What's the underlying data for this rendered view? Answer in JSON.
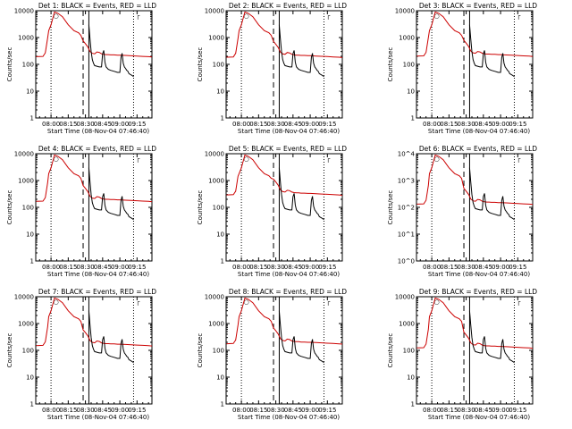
{
  "colors": {
    "events": "#000000",
    "lld": "#cc0000",
    "background": "#ffffff"
  },
  "panels": [
    {
      "title": "Det 1: BLACK = Events, RED = LLD",
      "mid": 220,
      "yfmt": "lin"
    },
    {
      "title": "Det 2: BLACK = Events, RED = LLD",
      "mid": 210,
      "yfmt": "lin"
    },
    {
      "title": "Det 3: BLACK = Events, RED = LLD",
      "mid": 230,
      "yfmt": "lin"
    },
    {
      "title": "Det 4: BLACK = Events, RED = LLD",
      "mid": 190,
      "yfmt": "lin"
    },
    {
      "title": "Det 5: BLACK = Events, RED = LLD",
      "mid": 330,
      "yfmt": "lin"
    },
    {
      "title": "Det 6: BLACK = Events, RED = LLD",
      "mid": 150,
      "yfmt": "exp"
    },
    {
      "title": "Det 7: BLACK = Events, RED = LLD",
      "mid": 170,
      "yfmt": "lin"
    },
    {
      "title": "Det 8: BLACK = Events, RED = LLD",
      "mid": 200,
      "yfmt": "lin"
    },
    {
      "title": "Det 9: BLACK = Events, RED = LLD",
      "mid": 140,
      "yfmt": "lin"
    }
  ],
  "xlabel": "Start Time (08-Nov-04 07:46:40)",
  "ylabel": "Counts/sec",
  "chart_data": {
    "type": "line",
    "layout": "3x3 small multiples",
    "xlabel": "Start Time (08-Nov-04 07:46:40)",
    "ylabel": "Counts/sec",
    "x_ticks": [
      "08:00",
      "08:15",
      "08:30",
      "08:45",
      "09:00",
      "09:15"
    ],
    "x_ticks_minutes": [
      0,
      15,
      30,
      45,
      60,
      75
    ],
    "xlim_minutes": [
      -13.33,
      88
    ],
    "yscale": "log",
    "ylim": [
      1,
      10000
    ],
    "y_ticks_linear_format": [
      "1",
      "10",
      "100",
      "1000",
      "10000"
    ],
    "y_ticks_exp_format": [
      "10^0",
      "10^1",
      "10^2",
      "10^3",
      "10^4"
    ],
    "vlines": [
      {
        "x_min": 0,
        "style": "dotted"
      },
      {
        "x_min": 28,
        "style": "dashed"
      },
      {
        "x_min": 33,
        "style": "solid"
      },
      {
        "x_min": 72,
        "style": "dotted"
      }
    ],
    "markers": [
      {
        "x_min": 2,
        "label": "○"
      },
      {
        "x_min": 74,
        "label": "┌"
      }
    ],
    "series_by_panel": {
      "base": {
        "lld": {
          "x": [
            -13,
            -7,
            -5,
            -3,
            -2,
            0,
            3,
            6,
            10,
            15,
            20,
            24,
            26,
            28,
            30,
            32,
            33,
            34,
            36,
            38,
            40,
            42,
            44,
            46,
            48,
            50,
            52,
            55,
            58,
            60,
            65,
            70,
            75,
            80,
            85,
            88
          ],
          "y": [
            180,
            185,
            250,
            900,
            1800,
            3000,
            9000,
            8000,
            6000,
            3000,
            1800,
            1500,
            1200,
            700,
            550,
            420,
            350,
            280,
            240,
            230,
            270,
            260,
            230,
            220,
            215,
            215,
            210,
            210,
            205,
            205,
            200,
            195,
            190,
            185,
            180,
            175
          ]
        },
        "events": {
          "x": [
            33,
            34,
            35,
            36,
            37,
            38,
            40,
            42,
            44,
            45,
            46,
            47,
            48,
            50,
            52,
            55,
            58,
            60,
            61,
            62,
            63,
            64,
            65,
            66,
            67,
            68,
            70,
            72
          ],
          "y": [
            3000,
            900,
            300,
            150,
            110,
            90,
            85,
            80,
            80,
            250,
            330,
            120,
            80,
            65,
            60,
            55,
            50,
            50,
            180,
            260,
            110,
            80,
            70,
            60,
            55,
            45,
            40,
            35
          ]
        }
      },
      "mid_level_lld_counts": [
        220,
        210,
        230,
        190,
        330,
        150,
        170,
        200,
        140
      ]
    }
  }
}
